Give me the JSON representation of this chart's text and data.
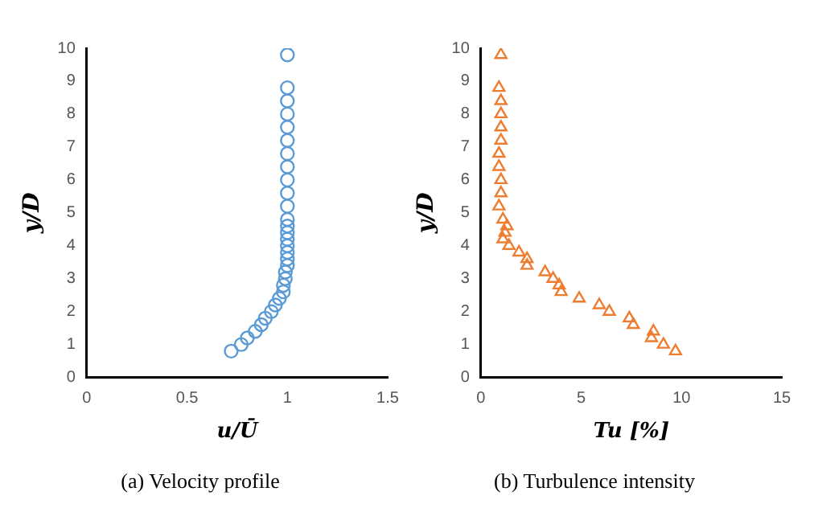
{
  "chart_data": [
    {
      "type": "scatter",
      "title": "(a) Velocity profile",
      "xlabel": "u/Ū",
      "ylabel": "y/D",
      "marker": "circle",
      "grid": false,
      "legend": false,
      "xlim": [
        0,
        1.5
      ],
      "xticks": [
        0,
        0.5,
        1,
        1.5
      ],
      "ylim": [
        0,
        10
      ],
      "yticks": [
        0,
        1,
        2,
        3,
        4,
        5,
        6,
        7,
        8,
        9,
        10
      ],
      "series": [
        {
          "color": "#5b9bd5",
          "x": [
            0.72,
            0.77,
            0.8,
            0.84,
            0.87,
            0.89,
            0.92,
            0.94,
            0.96,
            0.98,
            0.98,
            0.99,
            0.99,
            1.0,
            1.0,
            1.0,
            1.0,
            1.0,
            1.0,
            1.0,
            1.0,
            1.0,
            1.0,
            1.0,
            1.0,
            1.0,
            1.0,
            1.0,
            1.0,
            1.0,
            1.0,
            1.0
          ],
          "values": [
            0.8,
            1.0,
            1.2,
            1.4,
            1.6,
            1.8,
            2.0,
            2.2,
            2.4,
            2.6,
            2.8,
            3.0,
            3.2,
            3.4,
            3.6,
            3.8,
            4.0,
            4.2,
            4.4,
            4.6,
            4.8,
            5.2,
            5.6,
            6.0,
            6.4,
            6.8,
            7.2,
            7.6,
            8.0,
            8.4,
            8.8,
            9.8
          ]
        }
      ]
    },
    {
      "type": "scatter",
      "title": "(b) Turbulence intensity",
      "xlabel": "Tu [%]",
      "ylabel": "y/D",
      "marker": "triangle",
      "grid": false,
      "legend": false,
      "xlim": [
        0,
        15
      ],
      "xticks": [
        0,
        5,
        10,
        15
      ],
      "ylim": [
        0,
        10
      ],
      "yticks": [
        0,
        1,
        2,
        3,
        4,
        5,
        6,
        7,
        8,
        9,
        10
      ],
      "series": [
        {
          "color": "#ed7d31",
          "x": [
            9.7,
            9.1,
            8.5,
            8.6,
            7.6,
            7.4,
            6.4,
            5.9,
            4.9,
            4.0,
            3.9,
            3.6,
            3.2,
            2.3,
            2.3,
            1.9,
            1.4,
            1.1,
            1.2,
            1.3,
            1.1,
            0.9,
            1.0,
            1.0,
            0.9,
            0.9,
            1.0,
            1.0,
            1.0,
            1.0,
            0.9,
            1.0
          ],
          "values": [
            0.8,
            1.0,
            1.2,
            1.4,
            1.6,
            1.8,
            2.0,
            2.2,
            2.4,
            2.6,
            2.8,
            3.0,
            3.2,
            3.4,
            3.6,
            3.8,
            4.0,
            4.2,
            4.4,
            4.6,
            4.8,
            5.2,
            5.6,
            6.0,
            6.4,
            6.8,
            7.2,
            7.6,
            8.0,
            8.4,
            8.8,
            9.8
          ]
        }
      ]
    }
  ]
}
